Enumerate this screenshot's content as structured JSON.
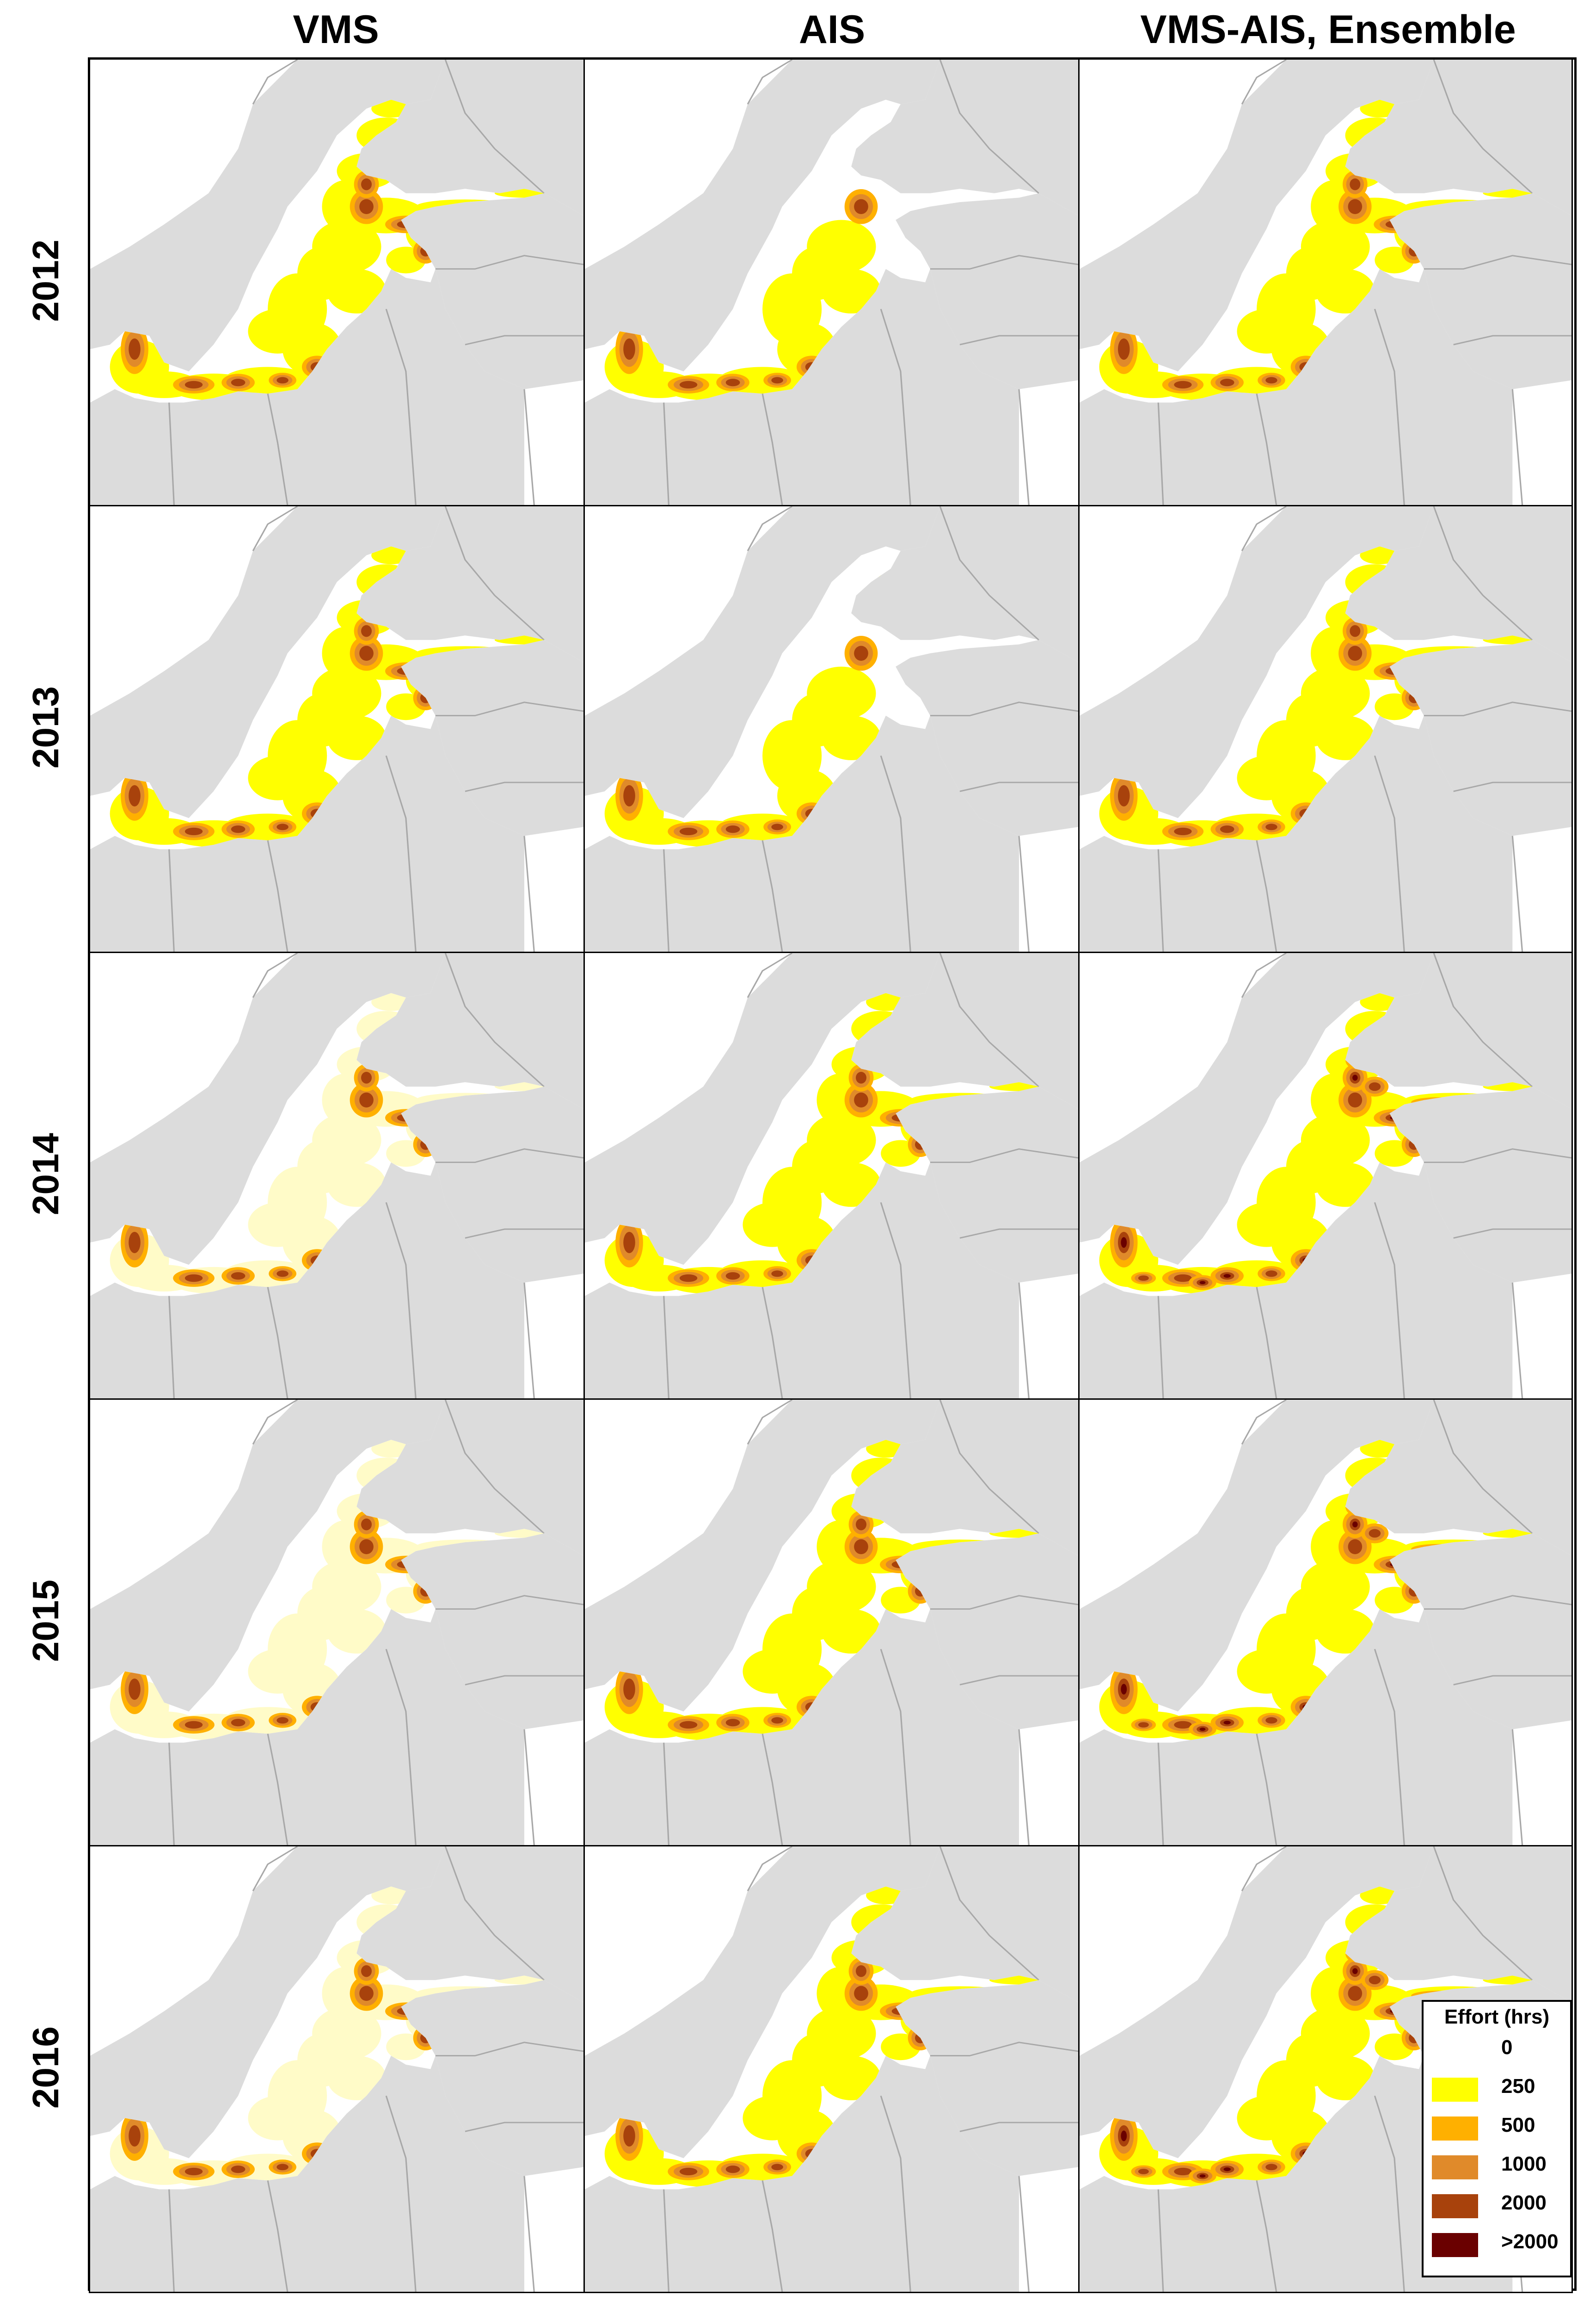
{
  "columns": [
    "VMS",
    "AIS",
    "VMS-AIS, Ensemble"
  ],
  "rows": [
    "2012",
    "2013",
    "2014",
    "2015",
    "2016"
  ],
  "map": {
    "land_color": "#dcdcdc",
    "border_color": "#a8a8a8",
    "sea_color": "#ffffff"
  },
  "effort_colors": {
    "zero": "#ffffff",
    "pale": "#fffbc8",
    "c250": "#ffff00",
    "c500": "#ffb000",
    "c1000": "#e08a2a",
    "c2000": "#a8420c",
    "cmax": "#6a0000"
  },
  "panels": [
    {
      "year": "2012",
      "source": "VMS",
      "base": "yellow",
      "hot": "medium"
    },
    {
      "year": "2012",
      "source": "AIS",
      "base": "sparse",
      "hot": "low"
    },
    {
      "year": "2012",
      "source": "VMS-AIS, Ensemble",
      "base": "yellow",
      "hot": "medium"
    },
    {
      "year": "2013",
      "source": "VMS",
      "base": "yellow",
      "hot": "medium"
    },
    {
      "year": "2013",
      "source": "AIS",
      "base": "sparse",
      "hot": "low"
    },
    {
      "year": "2013",
      "source": "VMS-AIS, Ensemble",
      "base": "yellow",
      "hot": "medium"
    },
    {
      "year": "2014",
      "source": "VMS",
      "base": "pale",
      "hot": "medium"
    },
    {
      "year": "2014",
      "source": "AIS",
      "base": "yellow",
      "hot": "medium"
    },
    {
      "year": "2014",
      "source": "VMS-AIS, Ensemble",
      "base": "yellow",
      "hot": "high"
    },
    {
      "year": "2015",
      "source": "VMS",
      "base": "pale",
      "hot": "medium"
    },
    {
      "year": "2015",
      "source": "AIS",
      "base": "yellow",
      "hot": "medium"
    },
    {
      "year": "2015",
      "source": "VMS-AIS, Ensemble",
      "base": "yellow",
      "hot": "high"
    },
    {
      "year": "2016",
      "source": "VMS",
      "base": "pale",
      "hot": "medium"
    },
    {
      "year": "2016",
      "source": "AIS",
      "base": "yellow",
      "hot": "medium"
    },
    {
      "year": "2016",
      "source": "VMS-AIS, Ensemble",
      "base": "yellow",
      "hot": "high"
    }
  ],
  "legend": {
    "title": "Effort (hrs)",
    "items": [
      {
        "label": "0",
        "color": "#ffffff"
      },
      {
        "label": "250",
        "color": "#ffff00"
      },
      {
        "label": "500",
        "color": "#ffb000"
      },
      {
        "label": "1000",
        "color": "#e08a2a"
      },
      {
        "label": "2000",
        "color": "#a8420c"
      },
      {
        "label": ">2000",
        "color": "#6a0000"
      }
    ]
  }
}
